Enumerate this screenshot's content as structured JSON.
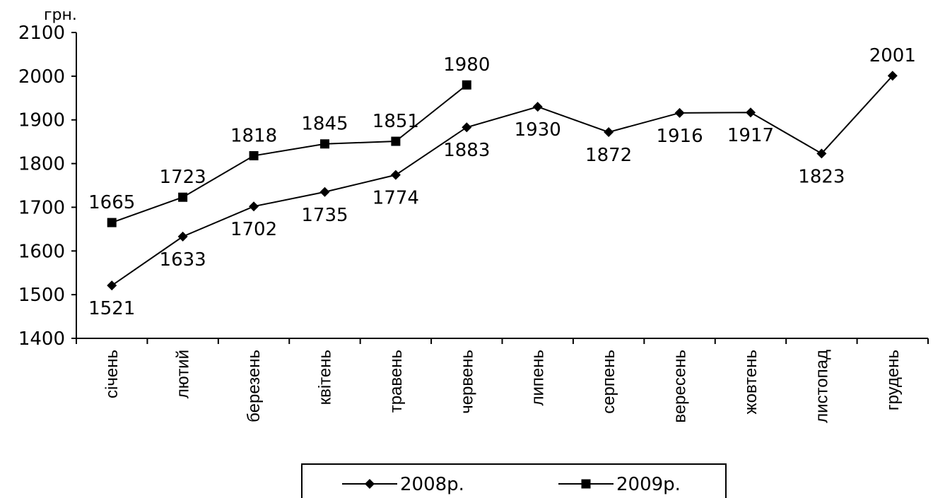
{
  "chart_data": {
    "type": "line",
    "title": "",
    "xlabel": "",
    "ylabel": "грн.",
    "ylim": [
      1400,
      2100
    ],
    "yticks": [
      1400,
      1500,
      1600,
      1700,
      1800,
      1900,
      2000,
      2100
    ],
    "grid": false,
    "legend_position": "bottom",
    "categories": [
      "січень",
      "лютий",
      "березень",
      "квітень",
      "травень",
      "червень",
      "липень",
      "серпень",
      "вересень",
      "жовтень",
      "листопад",
      "грудень"
    ],
    "series": [
      {
        "name": "2008р.",
        "marker": "diamond",
        "color": "#000000",
        "values": [
          1521,
          1633,
          1702,
          1735,
          1774,
          1883,
          1930,
          1872,
          1916,
          1917,
          1823,
          2001
        ],
        "label_positions": [
          "below",
          "below",
          "below",
          "below",
          "below",
          "below",
          "below",
          "below",
          "below",
          "below",
          "below",
          "above"
        ]
      },
      {
        "name": "2009р.",
        "marker": "square",
        "color": "#000000",
        "values": [
          1665,
          1723,
          1818,
          1845,
          1851,
          1980,
          null,
          null,
          null,
          null,
          null,
          null
        ],
        "label_positions": [
          "above",
          "above",
          "above",
          "above",
          "above",
          "above"
        ]
      }
    ]
  }
}
